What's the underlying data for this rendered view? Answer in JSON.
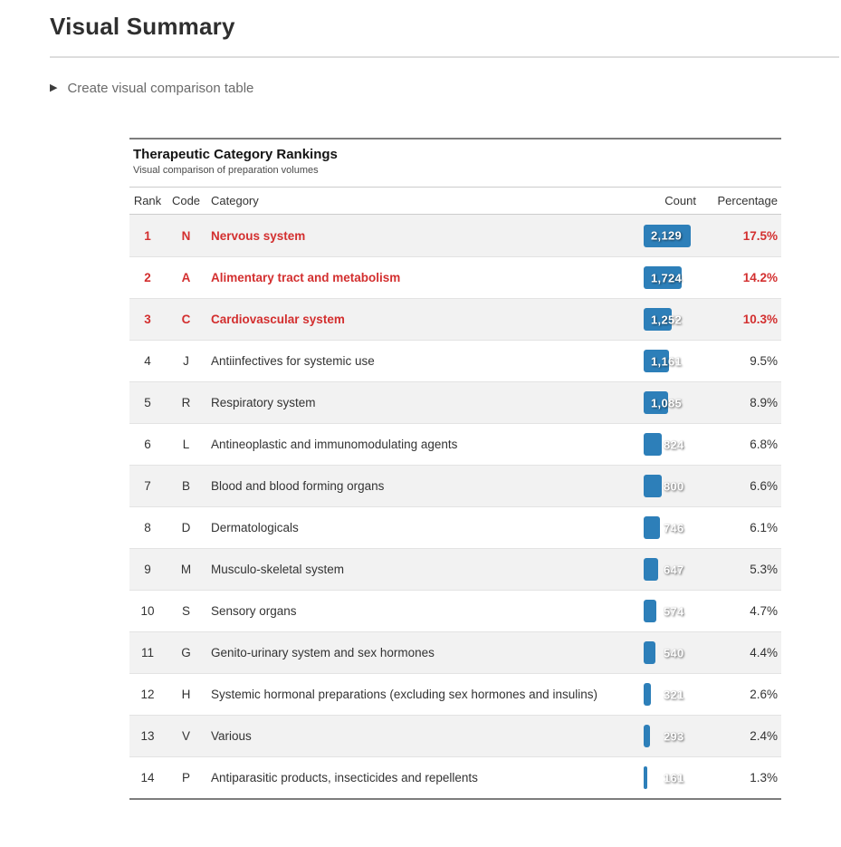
{
  "header": {
    "title": "Visual Summary"
  },
  "disclosure": {
    "triangle_icon": "▶",
    "label": "Create visual comparison table"
  },
  "table": {
    "title": "Therapeutic Category Rankings",
    "subtitle": "Visual comparison of preparation volumes",
    "columns": [
      "Rank",
      "Code",
      "Category",
      "Count",
      "Percentage"
    ],
    "rows": [
      {
        "rank": "1",
        "code": "N",
        "category": "Nervous system",
        "count": "2,129",
        "count_value": 2129,
        "percentage": "17.5%",
        "highlighted": true
      },
      {
        "rank": "2",
        "code": "A",
        "category": "Alimentary tract and metabolism",
        "count": "1,724",
        "count_value": 1724,
        "percentage": "14.2%",
        "highlighted": true
      },
      {
        "rank": "3",
        "code": "C",
        "category": "Cardiovascular system",
        "count": "1,252",
        "count_value": 1252,
        "percentage": "10.3%",
        "highlighted": true
      },
      {
        "rank": "4",
        "code": "J",
        "category": "Antiinfectives for systemic use",
        "count": "1,161",
        "count_value": 1161,
        "percentage": "9.5%",
        "highlighted": false
      },
      {
        "rank": "5",
        "code": "R",
        "category": "Respiratory system",
        "count": "1,085",
        "count_value": 1085,
        "percentage": "8.9%",
        "highlighted": false
      },
      {
        "rank": "6",
        "code": "L",
        "category": "Antineoplastic and immunomodulating agents",
        "count": "824",
        "count_value": 824,
        "percentage": "6.8%",
        "highlighted": false
      },
      {
        "rank": "7",
        "code": "B",
        "category": "Blood and blood forming organs",
        "count": "800",
        "count_value": 800,
        "percentage": "6.6%",
        "highlighted": false
      },
      {
        "rank": "8",
        "code": "D",
        "category": "Dermatologicals",
        "count": "746",
        "count_value": 746,
        "percentage": "6.1%",
        "highlighted": false
      },
      {
        "rank": "9",
        "code": "M",
        "category": "Musculo-skeletal system",
        "count": "647",
        "count_value": 647,
        "percentage": "5.3%",
        "highlighted": false
      },
      {
        "rank": "10",
        "code": "S",
        "category": "Sensory organs",
        "count": "574",
        "count_value": 574,
        "percentage": "4.7%",
        "highlighted": false
      },
      {
        "rank": "11",
        "code": "G",
        "category": "Genito-urinary system and sex hormones",
        "count": "540",
        "count_value": 540,
        "percentage": "4.4%",
        "highlighted": false
      },
      {
        "rank": "12",
        "code": "H",
        "category": "Systemic hormonal preparations (excluding sex hormones and insulins)",
        "count": "321",
        "count_value": 321,
        "percentage": "2.6%",
        "highlighted": false
      },
      {
        "rank": "13",
        "code": "V",
        "category": "Various",
        "count": "293",
        "count_value": 293,
        "percentage": "2.4%",
        "highlighted": false
      },
      {
        "rank": "14",
        "code": "P",
        "category": "Antiparasitic products, insecticides and repellents",
        "count": "161",
        "count_value": 161,
        "percentage": "1.3%",
        "highlighted": false
      }
    ]
  },
  "chart_data": {
    "type": "bar",
    "orientation": "horizontal",
    "title": "Therapeutic Category Rankings",
    "subtitle": "Visual comparison of preparation volumes",
    "categories": [
      "Nervous system",
      "Alimentary tract and metabolism",
      "Cardiovascular system",
      "Antiinfectives for systemic use",
      "Respiratory system",
      "Antineoplastic and immunomodulating agents",
      "Blood and blood forming organs",
      "Dermatologicals",
      "Musculo-skeletal system",
      "Sensory organs",
      "Genito-urinary system and sex hormones",
      "Systemic hormonal preparations (excluding sex hormones and insulins)",
      "Various",
      "Antiparasitic products, insecticides and repellents"
    ],
    "codes": [
      "N",
      "A",
      "C",
      "J",
      "R",
      "L",
      "B",
      "D",
      "M",
      "S",
      "G",
      "H",
      "V",
      "P"
    ],
    "values": [
      2129,
      1724,
      1252,
      1161,
      1085,
      824,
      800,
      746,
      647,
      574,
      540,
      321,
      293,
      161
    ],
    "percentages": [
      17.5,
      14.2,
      10.3,
      9.5,
      8.9,
      6.8,
      6.6,
      6.1,
      5.3,
      4.7,
      4.4,
      2.6,
      2.4,
      1.3
    ],
    "max_value": 2129,
    "bar_color": "#2d7fb9",
    "highlight_top_n": 3,
    "highlight_color": "#d32f2f",
    "row_alt_background": "#f2f2f2"
  },
  "colors": {
    "bar_blue": "#2d7fb9",
    "highlight_red": "#d32f2f",
    "row_alt_bg": "#f2f2f2",
    "table_border": "#7d7d7d"
  }
}
